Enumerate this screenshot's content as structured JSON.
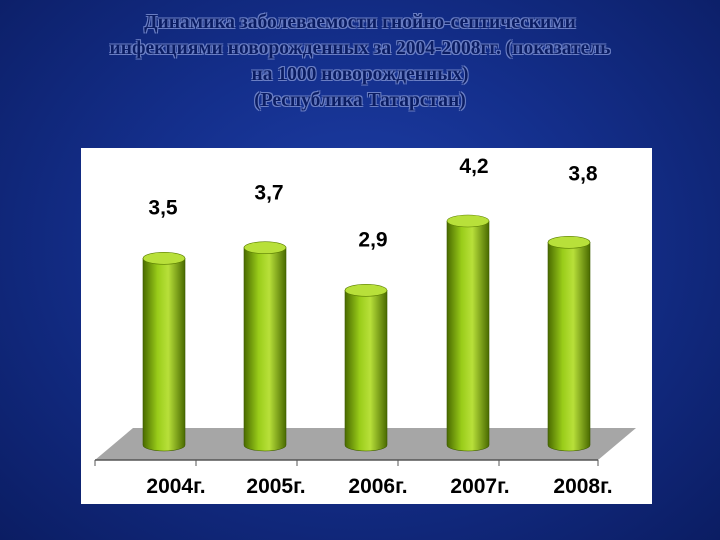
{
  "title": {
    "lines": [
      "Динамика заболеваемости гнойно-септическими",
      "инфекциями новорожденных за 2004-2008гг. (показатель",
      "на 1000 новорожденных)",
      "(Республика Татарстан)"
    ]
  },
  "chart_data": {
    "type": "bar",
    "style": "3d-cylinder",
    "categories": [
      "2004г.",
      "2005г.",
      "2006г.",
      "2007г.",
      "2008г."
    ],
    "values": [
      3.5,
      3.7,
      2.9,
      4.2,
      3.8
    ],
    "value_labels": [
      "3,5",
      "3,7",
      "2,9",
      "4,2",
      "3,8"
    ],
    "ylim": [
      0,
      4.2
    ],
    "grid": false,
    "legend": "none",
    "colors": {
      "bar": "#9acd1a",
      "bar_dark": "#4a6b00",
      "bar_top": "#b8e03a",
      "floor": "#a6a6a6"
    }
  }
}
